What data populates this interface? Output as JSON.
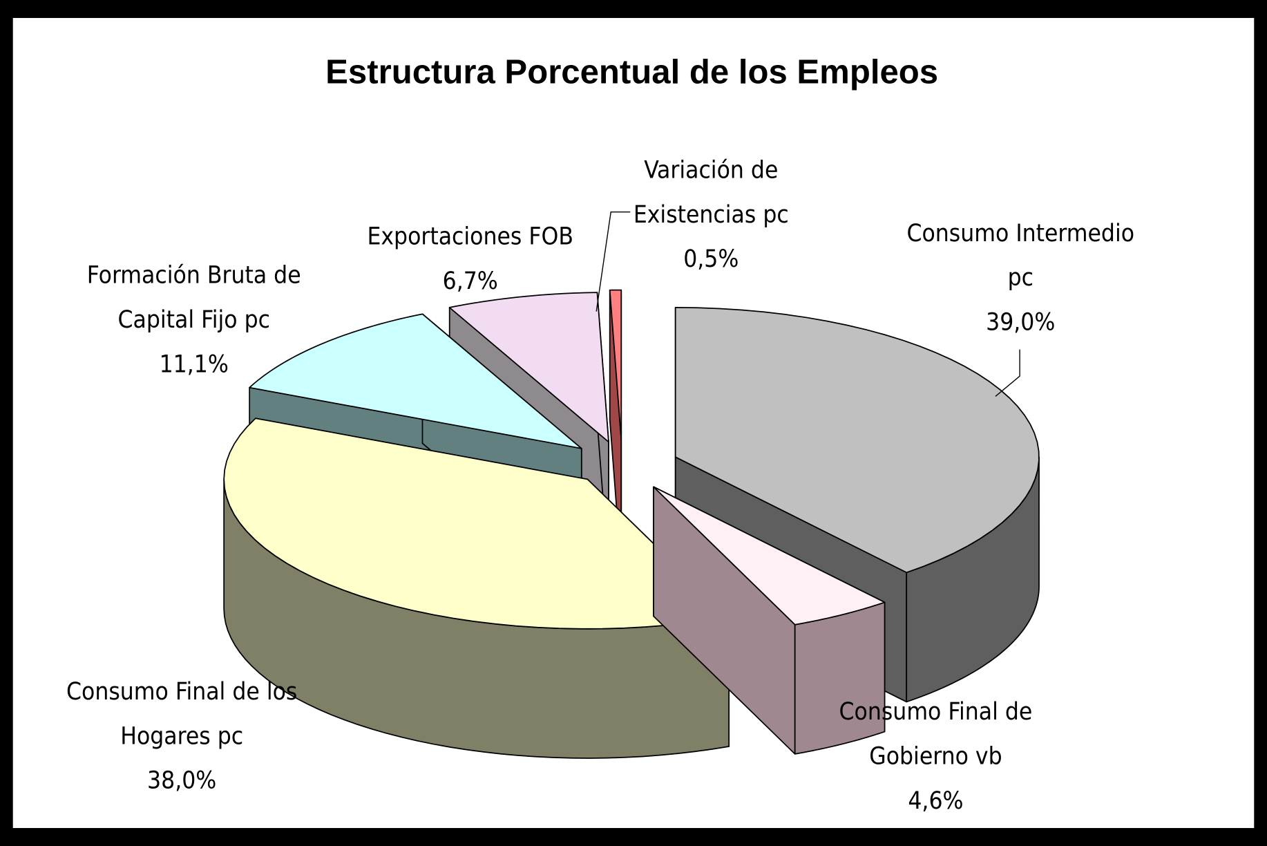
{
  "chart_data": {
    "type": "pie",
    "subtype": "3d-exploded",
    "title": "Estructura Porcentual de los Empleos",
    "slices": [
      {
        "label_lines": [
          "Consumo Intermedio",
          "pc"
        ],
        "value_label": "39,0%",
        "value": 39.0,
        "top_color": "#c0c0c0",
        "side_color": "#5f5f5f"
      },
      {
        "label_lines": [
          "Consumo Final de",
          "Gobierno vb"
        ],
        "value_label": "4,6%",
        "value": 4.6,
        "top_color": "#fff0f6",
        "side_color": "#a08890"
      },
      {
        "label_lines": [
          "Consumo Final de los",
          "Hogares pc"
        ],
        "value_label": "38,0%",
        "value": 38.0,
        "top_color": "#ffffcc",
        "side_color": "#808066"
      },
      {
        "label_lines": [
          "Formación Bruta de",
          "Capital Fijo pc"
        ],
        "value_label": "11,1%",
        "value": 11.1,
        "top_color": "#ccffff",
        "side_color": "#638080"
      },
      {
        "label_lines": [
          "Exportaciones FOB"
        ],
        "value_label": "6,7%",
        "value": 6.7,
        "top_color": "#f2dcf2",
        "side_color": "#8e8a8e"
      },
      {
        "label_lines": [
          "Variación de",
          "Existencias pc"
        ],
        "value_label": "0,5%",
        "value": 0.5,
        "top_color": "#ff8080",
        "side_color": "#a04848"
      }
    ],
    "legend": "none",
    "background": "#ffffff",
    "frame_color": "#000000"
  }
}
